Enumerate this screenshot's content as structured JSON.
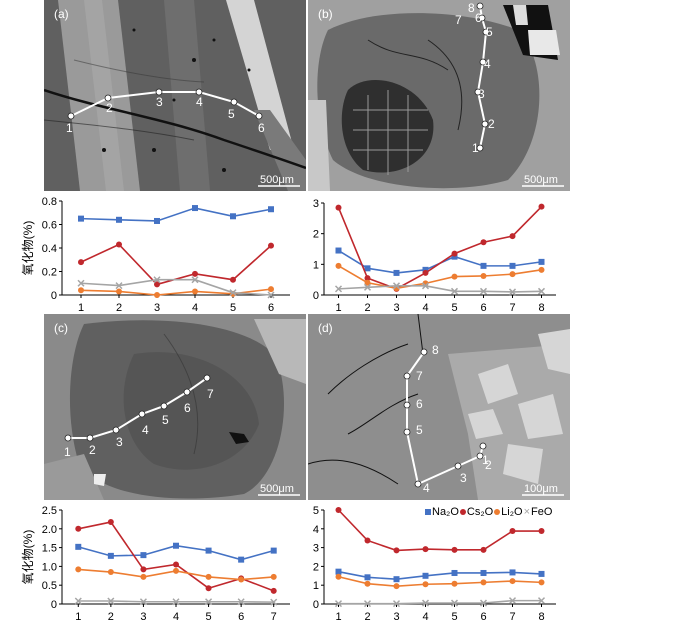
{
  "colors": {
    "Na2O": "#4472c4",
    "Cs2O": "#c0282d",
    "Li2O": "#ed7d31",
    "FeO": "#a5a5a5"
  },
  "images": [
    {
      "id": "a",
      "label": "(a)",
      "scale": "500μm"
    },
    {
      "id": "b",
      "label": "(b)",
      "scale": "500μm"
    },
    {
      "id": "c",
      "label": "(c)",
      "scale": "500μm"
    },
    {
      "id": "d",
      "label": "(d)",
      "scale": "100μm"
    }
  ],
  "legend": {
    "items": [
      {
        "key": "Na2O",
        "text": "Na₂O",
        "marker": "square"
      },
      {
        "key": "Cs2O",
        "text": "Cs₂O",
        "marker": "circle"
      },
      {
        "key": "Li2O",
        "text": "Li₂O",
        "marker": "circle"
      },
      {
        "key": "FeO",
        "text": "FeO",
        "marker": "x"
      }
    ]
  },
  "chart_data": [
    {
      "panel": "a",
      "type": "line",
      "ylabel": "氧化物(%)",
      "ylim": [
        0,
        0.8
      ],
      "yticks": [
        0,
        0.2,
        0.4,
        0.6,
        0.8
      ],
      "yticklabels": [
        "0",
        "0.2",
        "0.4",
        "0.6",
        "0.8"
      ],
      "x": [
        1,
        2,
        3,
        4,
        5,
        6
      ],
      "series": [
        {
          "key": "Na2O",
          "values": [
            0.65,
            0.64,
            0.63,
            0.74,
            0.67,
            0.73
          ]
        },
        {
          "key": "Cs2O",
          "values": [
            0.28,
            0.43,
            0.09,
            0.18,
            0.13,
            0.42
          ]
        },
        {
          "key": "Li2O",
          "values": [
            0.04,
            0.03,
            0.0,
            0.03,
            0.01,
            0.05
          ]
        },
        {
          "key": "FeO",
          "values": [
            0.1,
            0.08,
            0.13,
            0.13,
            0.02,
            0.0
          ]
        }
      ]
    },
    {
      "panel": "b",
      "type": "line",
      "ylabel": "氧化物(%)",
      "ylim": [
        0,
        3
      ],
      "yticks": [
        0,
        1,
        2,
        3
      ],
      "yticklabels": [
        "0",
        "1",
        "2",
        "3"
      ],
      "x": [
        1,
        2,
        3,
        4,
        5,
        6,
        7,
        8
      ],
      "series": [
        {
          "key": "Na2O",
          "values": [
            1.45,
            0.87,
            0.72,
            0.82,
            1.25,
            0.95,
            0.95,
            1.08
          ]
        },
        {
          "key": "Cs2O",
          "values": [
            2.85,
            0.55,
            0.2,
            0.72,
            1.35,
            1.72,
            1.92,
            2.88
          ]
        },
        {
          "key": "Li2O",
          "values": [
            0.95,
            0.4,
            0.22,
            0.38,
            0.6,
            0.62,
            0.68,
            0.82
          ]
        },
        {
          "key": "FeO",
          "values": [
            0.2,
            0.25,
            0.3,
            0.3,
            0.12,
            0.12,
            0.1,
            0.12
          ]
        }
      ]
    },
    {
      "panel": "c",
      "type": "line",
      "ylabel": "氧化物(%)",
      "ylim": [
        0,
        2.5
      ],
      "yticks": [
        0,
        0.5,
        1.0,
        1.5,
        2.0,
        2.5
      ],
      "yticklabels": [
        "0",
        "0.5",
        "1.0",
        "1.5",
        "2.0",
        "2.5"
      ],
      "x": [
        1,
        2,
        3,
        4,
        5,
        6,
        7
      ],
      "series": [
        {
          "key": "Na2O",
          "values": [
            1.52,
            1.28,
            1.3,
            1.55,
            1.42,
            1.18,
            1.42
          ]
        },
        {
          "key": "Cs2O",
          "values": [
            2.0,
            2.18,
            0.92,
            1.05,
            0.42,
            0.68,
            0.35
          ]
        },
        {
          "key": "Li2O",
          "values": [
            0.92,
            0.85,
            0.72,
            0.88,
            0.72,
            0.65,
            0.72
          ]
        },
        {
          "key": "FeO",
          "values": [
            0.08,
            0.08,
            0.06,
            0.06,
            0.06,
            0.06,
            0.05
          ]
        }
      ]
    },
    {
      "panel": "d",
      "type": "line",
      "ylabel": "氧化物(%)",
      "ylim": [
        0,
        5
      ],
      "yticks": [
        0,
        1,
        2,
        3,
        4,
        5
      ],
      "yticklabels": [
        "0",
        "1",
        "2",
        "3",
        "4",
        "5"
      ],
      "x": [
        1,
        2,
        3,
        4,
        5,
        6,
        7,
        8
      ],
      "series": [
        {
          "key": "Na2O",
          "values": [
            1.72,
            1.42,
            1.32,
            1.5,
            1.65,
            1.65,
            1.68,
            1.6
          ]
        },
        {
          "key": "Cs2O",
          "values": [
            5.0,
            3.38,
            2.85,
            2.92,
            2.88,
            2.88,
            3.88,
            3.88
          ]
        },
        {
          "key": "Li2O",
          "values": [
            1.45,
            1.08,
            0.95,
            1.05,
            1.08,
            1.15,
            1.22,
            1.15
          ]
        },
        {
          "key": "FeO",
          "values": [
            0.02,
            0.02,
            0.02,
            0.05,
            0.05,
            0.05,
            0.18,
            0.18
          ]
        }
      ]
    }
  ]
}
